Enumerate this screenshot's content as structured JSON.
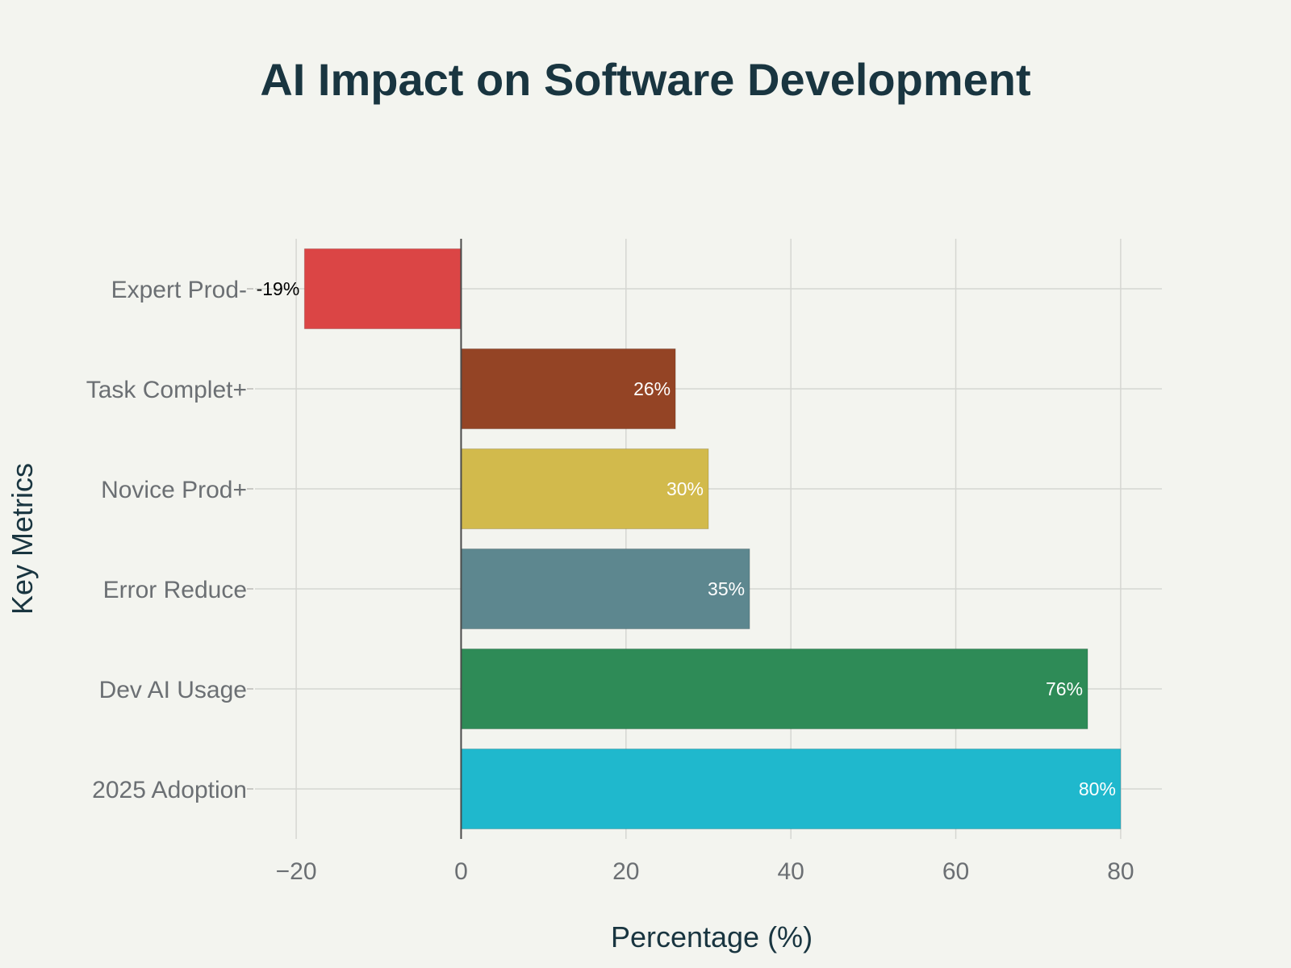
{
  "chart_data": {
    "type": "bar",
    "orientation": "horizontal",
    "title": "AI Impact on Software Development",
    "xlabel": "Percentage (%)",
    "ylabel": "Key Metrics",
    "xlim": [
      -25,
      85
    ],
    "x_ticks": [
      -20,
      0,
      20,
      40,
      60,
      80
    ],
    "x_tick_labels": [
      "−20",
      "0",
      "20",
      "40",
      "60",
      "80"
    ],
    "grid": true,
    "categories": [
      "Expert Prod-",
      "Task Complet+",
      "Novice Prod+",
      "Error Reduce",
      "Dev AI Usage",
      "2025 Adoption"
    ],
    "values": [
      -19,
      26,
      30,
      35,
      76,
      80
    ],
    "value_labels": [
      "-19%",
      "26%",
      "30%",
      "35%",
      "76%",
      "80%"
    ],
    "colors": [
      "#db4545",
      "#944425",
      "#d2ba4c",
      "#5d878f",
      "#2e8b57",
      "#1fb8cd"
    ],
    "label_colors": [
      "#000000",
      "#ffffff",
      "#ffffff",
      "#ffffff",
      "#ffffff",
      "#ffffff"
    ]
  }
}
